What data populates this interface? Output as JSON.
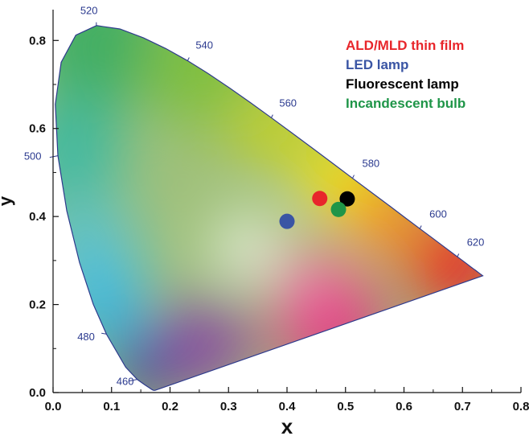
{
  "chart_data": {
    "type": "scatter",
    "title": "",
    "xlabel": "x",
    "ylabel": "y",
    "xlim": [
      0.0,
      0.8
    ],
    "ylim": [
      0.0,
      0.87
    ],
    "x_ticks": [
      "0.0",
      "0.1",
      "0.2",
      "0.3",
      "0.4",
      "0.5",
      "0.6",
      "0.7",
      "0.8"
    ],
    "y_ticks": [
      "0.0",
      "0.2",
      "0.4",
      "0.6",
      "0.8"
    ],
    "grid": false,
    "legend_position": "top-right",
    "series": [
      {
        "name": "ALD/MLD thin film",
        "color": "#e8262b",
        "points": [
          {
            "x": 0.456,
            "y": 0.441
          }
        ]
      },
      {
        "name": "LED lamp",
        "color": "#3a55a4",
        "points": [
          {
            "x": 0.4,
            "y": 0.389
          }
        ]
      },
      {
        "name": "Fluorescent lamp",
        "color": "#000000",
        "points": [
          {
            "x": 0.503,
            "y": 0.44
          }
        ]
      },
      {
        "name": "Incandescent bulb",
        "color": "#1f9548",
        "points": [
          {
            "x": 0.488,
            "y": 0.416
          }
        ]
      }
    ],
    "spectral_locus_labels": [
      {
        "text": "460",
        "x": 0.144,
        "y": 0.03
      },
      {
        "text": "480",
        "x": 0.091,
        "y": 0.133
      },
      {
        "text": "500",
        "x": 0.008,
        "y": 0.538
      },
      {
        "text": "520",
        "x": 0.074,
        "y": 0.834
      },
      {
        "text": "540",
        "x": 0.23,
        "y": 0.754
      },
      {
        "text": "560",
        "x": 0.373,
        "y": 0.624
      },
      {
        "text": "580",
        "x": 0.512,
        "y": 0.487
      },
      {
        "text": "600",
        "x": 0.627,
        "y": 0.372
      },
      {
        "text": "620",
        "x": 0.691,
        "y": 0.308
      }
    ],
    "spectral_locus": [
      [
        0.1741,
        0.005
      ],
      [
        0.1714,
        0.0051
      ],
      [
        0.1689,
        0.0069
      ],
      [
        0.1644,
        0.0109
      ],
      [
        0.1566,
        0.0177
      ],
      [
        0.144,
        0.0297
      ],
      [
        0.1241,
        0.0578
      ],
      [
        0.0913,
        0.1327
      ],
      [
        0.0687,
        0.2007
      ],
      [
        0.0454,
        0.295
      ],
      [
        0.0235,
        0.4127
      ],
      [
        0.0082,
        0.5384
      ],
      [
        0.0039,
        0.6548
      ],
      [
        0.0139,
        0.7502
      ],
      [
        0.0389,
        0.812
      ],
      [
        0.0743,
        0.8338
      ],
      [
        0.1142,
        0.8262
      ],
      [
        0.1547,
        0.8059
      ],
      [
        0.1929,
        0.7816
      ],
      [
        0.2296,
        0.7543
      ],
      [
        0.2658,
        0.7243
      ],
      [
        0.3016,
        0.6923
      ],
      [
        0.3373,
        0.6589
      ],
      [
        0.3731,
        0.6245
      ],
      [
        0.4087,
        0.5896
      ],
      [
        0.4441,
        0.5547
      ],
      [
        0.4788,
        0.5202
      ],
      [
        0.5125,
        0.4866
      ],
      [
        0.5448,
        0.4544
      ],
      [
        0.5752,
        0.4242
      ],
      [
        0.6029,
        0.3965
      ],
      [
        0.627,
        0.3725
      ],
      [
        0.6482,
        0.3514
      ],
      [
        0.6658,
        0.334
      ],
      [
        0.6801,
        0.3197
      ],
      [
        0.6915,
        0.3083
      ],
      [
        0.7006,
        0.2993
      ],
      [
        0.7079,
        0.292
      ],
      [
        0.714,
        0.2859
      ],
      [
        0.719,
        0.2809
      ],
      [
        0.723,
        0.277
      ],
      [
        0.726,
        0.274
      ],
      [
        0.7283,
        0.2717
      ],
      [
        0.73,
        0.27
      ],
      [
        0.7347,
        0.2653
      ]
    ]
  }
}
